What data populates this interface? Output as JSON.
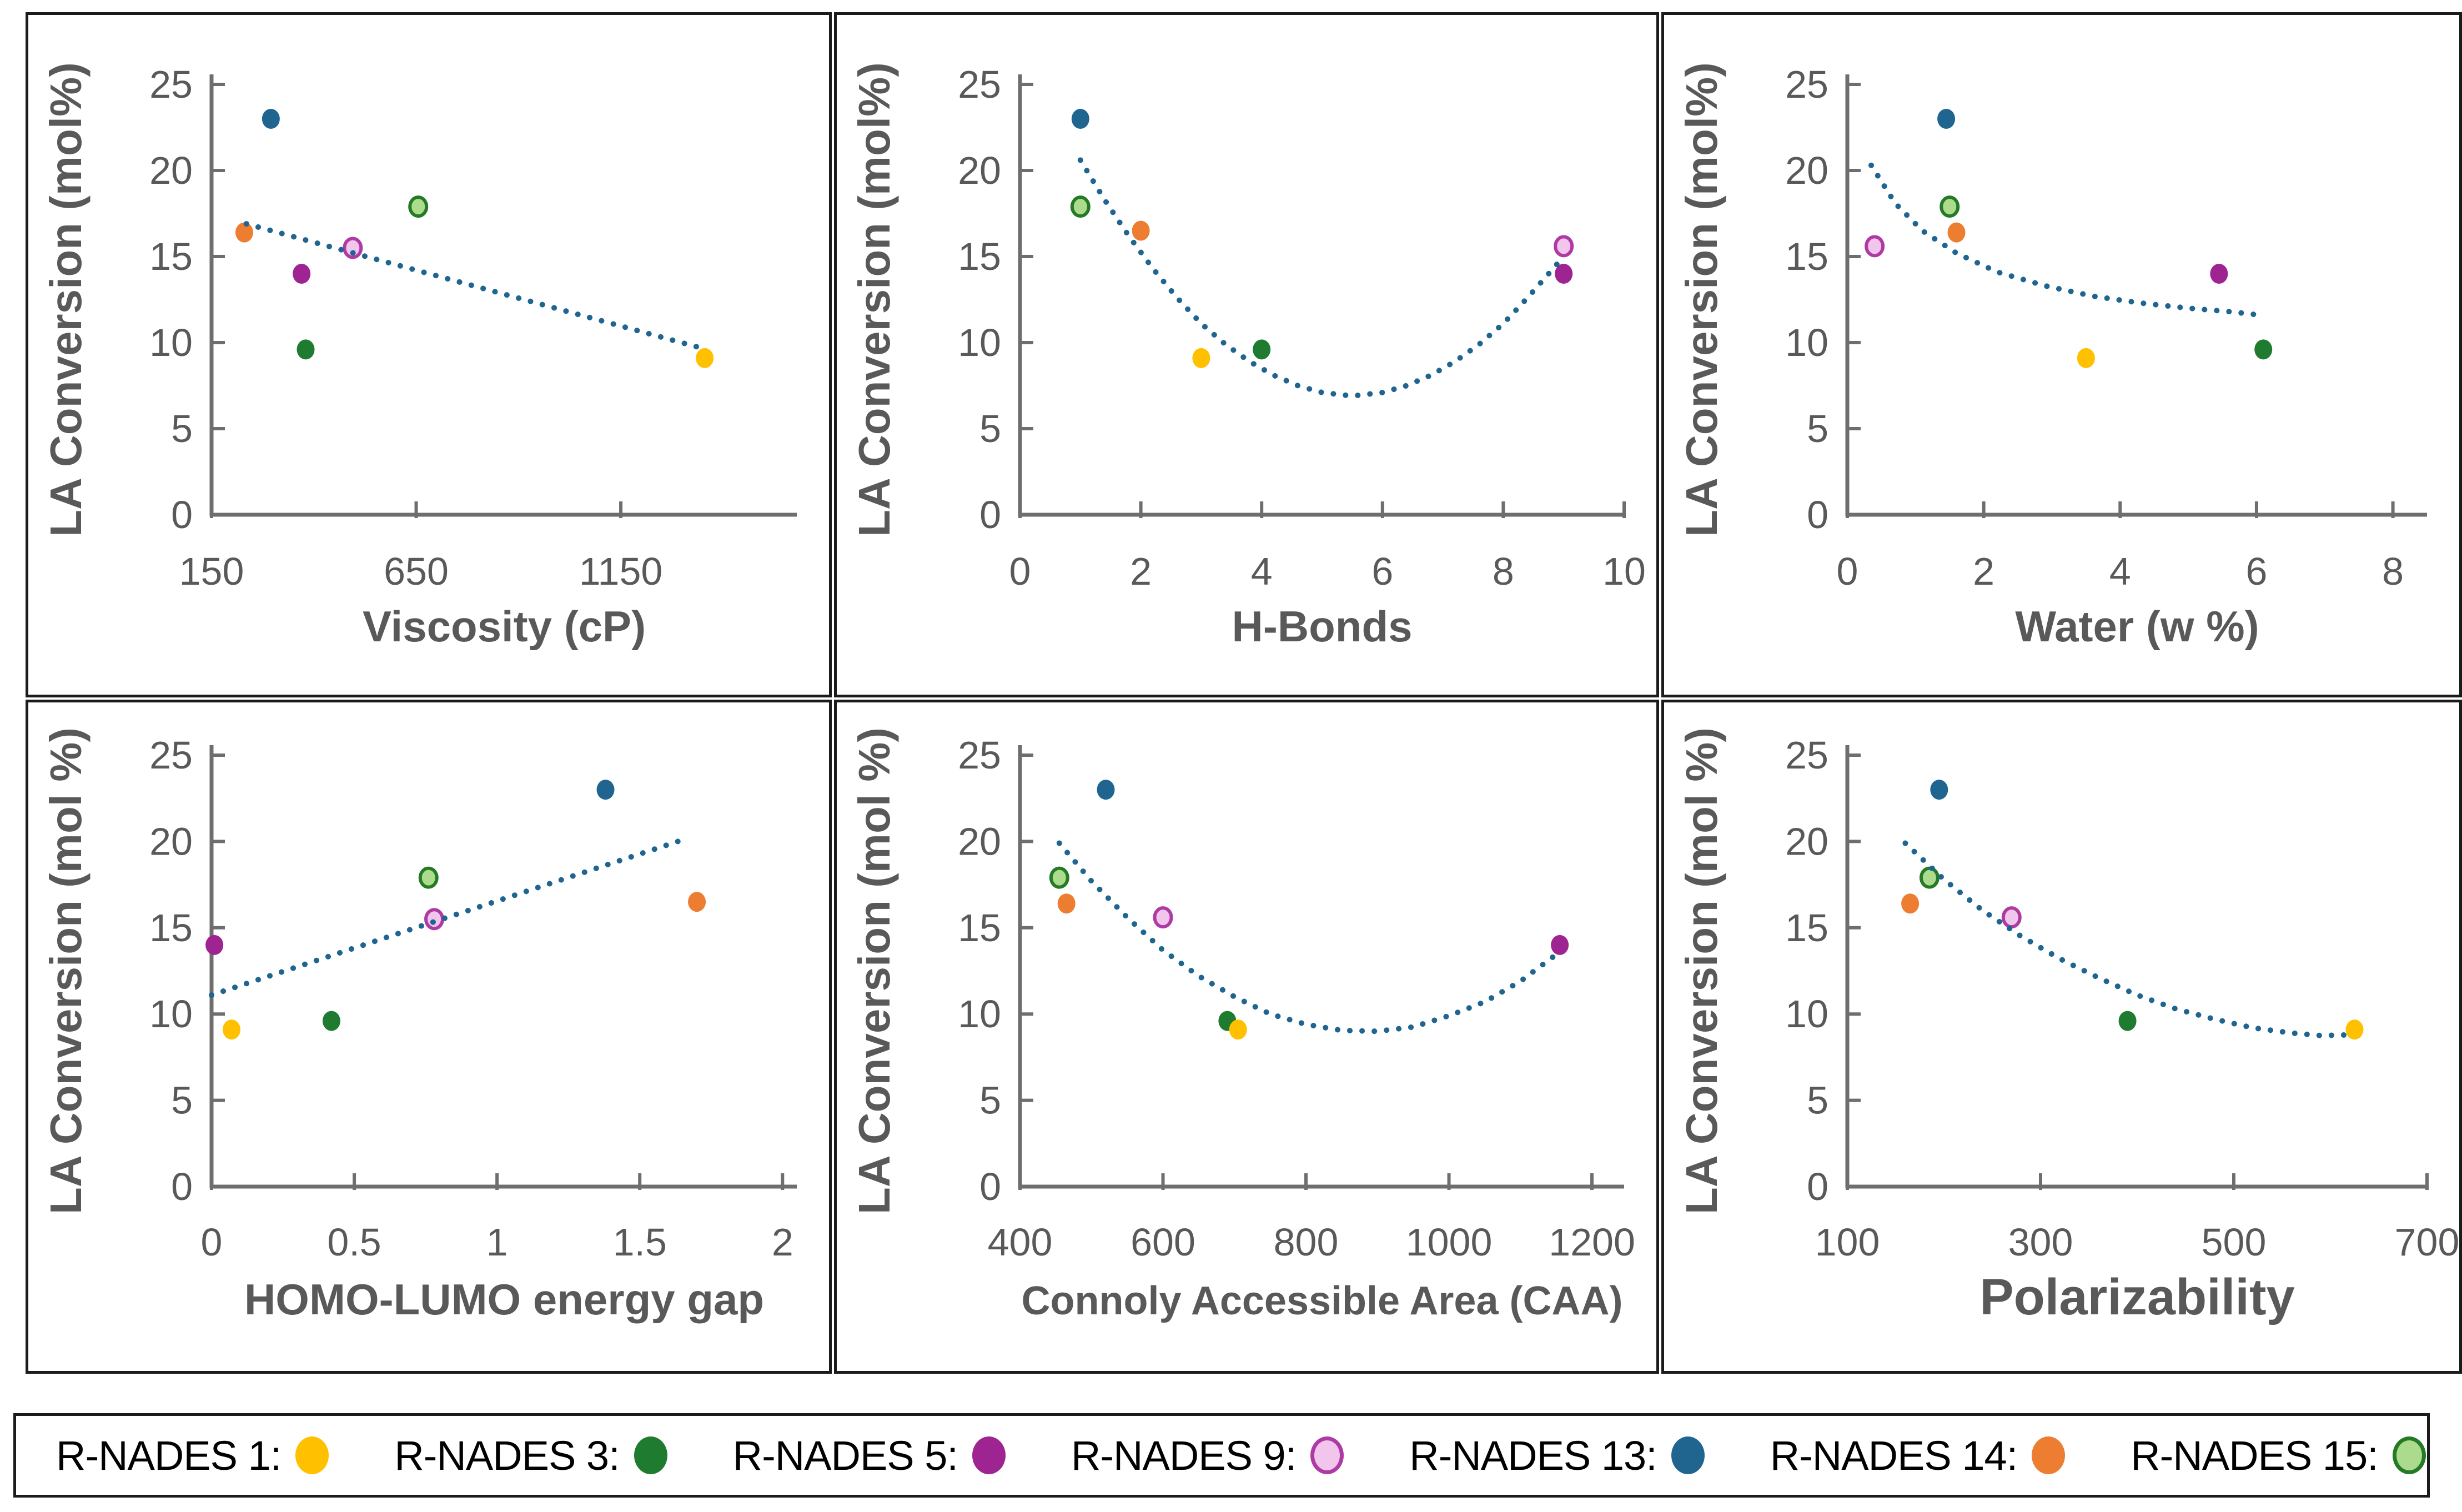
{
  "style": {
    "axis_color": "#6E6E6E",
    "tick_text_color": "#595959",
    "title_text_color": "#595959",
    "trend_color": "#1F6590",
    "panel_border_color": "#1b1b1b",
    "legend_text_color": "#000000",
    "background": "#ffffff"
  },
  "palette": {
    "R-NADES 1": {
      "fill": "#FFC000"
    },
    "R-NADES 3": {
      "fill": "#1E7B2F"
    },
    "R-NADES 5": {
      "fill": "#9E2491"
    },
    "R-NADES 9": {
      "fill": "#F2C5EC",
      "stroke": "#AE3AA4"
    },
    "R-NADES 13": {
      "fill": "#1F6590"
    },
    "R-NADES 14": {
      "fill": "#ED7D31"
    },
    "R-NADES 15": {
      "fill": "#ACDB8E",
      "stroke": "#257A25"
    }
  },
  "legend": {
    "items": [
      {
        "label": "R-NADES 1:",
        "key": "R-NADES 1"
      },
      {
        "label": "R-NADES 3:",
        "key": "R-NADES 3"
      },
      {
        "label": "R-NADES 5:",
        "key": "R-NADES 5"
      },
      {
        "label": "R-NADES 9:",
        "key": "R-NADES 9"
      },
      {
        "label": "R-NADES 13:",
        "key": "R-NADES 13"
      },
      {
        "label": "R-NADES 14:",
        "key": "R-NADES 14"
      },
      {
        "label": "R-NADES 15:",
        "key": "R-NADES 15"
      }
    ]
  },
  "chart_data": [
    {
      "id": "viscosity",
      "type": "scatter",
      "xlabel": "Viscosity (cP)",
      "ylabel": "LA Conversion (mol%)",
      "xlim": [
        150,
        1580
      ],
      "xticks": [
        150,
        650,
        1150
      ],
      "ylim": [
        0,
        25
      ],
      "yticks": [
        0,
        5,
        10,
        15,
        20,
        25
      ],
      "title_size": 78,
      "points": [
        {
          "sample": "R-NADES 13",
          "x": 295,
          "y": 23.0
        },
        {
          "sample": "R-NADES 14",
          "x": 230,
          "y": 16.4
        },
        {
          "sample": "R-NADES 15",
          "x": 655,
          "y": 17.9
        },
        {
          "sample": "R-NADES 9",
          "x": 495,
          "y": 15.5
        },
        {
          "sample": "R-NADES 5",
          "x": 370,
          "y": 14.0
        },
        {
          "sample": "R-NADES 3",
          "x": 380,
          "y": 9.6
        },
        {
          "sample": "R-NADES 1",
          "x": 1355,
          "y": 9.1
        }
      ],
      "trend": {
        "type": "linear",
        "points": [
          [
            235,
            16.9
          ],
          [
            1360,
            9.6
          ]
        ]
      }
    },
    {
      "id": "hbonds",
      "type": "scatter",
      "xlabel": "H-Bonds",
      "ylabel": "LA Conversion (mol%)",
      "xlim": [
        0,
        10
      ],
      "xticks": [
        0,
        2,
        4,
        6,
        8,
        10
      ],
      "ylim": [
        0,
        25
      ],
      "yticks": [
        0,
        5,
        10,
        15,
        20,
        25
      ],
      "title_size": 78,
      "points": [
        {
          "sample": "R-NADES 13",
          "x": 1,
          "y": 23.0
        },
        {
          "sample": "R-NADES 15",
          "x": 1,
          "y": 17.9
        },
        {
          "sample": "R-NADES 14",
          "x": 2,
          "y": 16.5
        },
        {
          "sample": "R-NADES 1",
          "x": 3,
          "y": 9.1
        },
        {
          "sample": "R-NADES 3",
          "x": 4,
          "y": 9.6
        },
        {
          "sample": "R-NADES 5",
          "x": 9,
          "y": 14.0
        },
        {
          "sample": "R-NADES 9",
          "x": 9,
          "y": 15.6
        }
      ],
      "trend": {
        "type": "polynomial",
        "points": [
          [
            1.0,
            20.6
          ],
          [
            1.4,
            18.3
          ],
          [
            1.8,
            16.2
          ],
          [
            2.2,
            14.3
          ],
          [
            2.6,
            12.6
          ],
          [
            3.0,
            11.1
          ],
          [
            3.4,
            9.9
          ],
          [
            3.8,
            8.9
          ],
          [
            4.2,
            8.1
          ],
          [
            4.6,
            7.5
          ],
          [
            5.0,
            7.1
          ],
          [
            5.5,
            6.9
          ],
          [
            6.0,
            7.1
          ],
          [
            6.4,
            7.5
          ],
          [
            6.8,
            8.1
          ],
          [
            7.2,
            8.9
          ],
          [
            7.6,
            9.9
          ],
          [
            8.0,
            11.1
          ],
          [
            8.4,
            12.6
          ],
          [
            8.7,
            13.8
          ],
          [
            9.0,
            15.0
          ]
        ]
      }
    },
    {
      "id": "water",
      "type": "scatter",
      "xlabel": "Water (w %)",
      "ylabel": "LA Conversion (mol%)",
      "xlim": [
        0,
        8.5
      ],
      "xticks": [
        0,
        2,
        4,
        6,
        8
      ],
      "ylim": [
        0,
        25
      ],
      "yticks": [
        0,
        5,
        10,
        15,
        20,
        25
      ],
      "title_size": 78,
      "points": [
        {
          "sample": "R-NADES 9",
          "x": 0.4,
          "y": 15.6
        },
        {
          "sample": "R-NADES 13",
          "x": 1.45,
          "y": 23.0
        },
        {
          "sample": "R-NADES 15",
          "x": 1.5,
          "y": 17.9
        },
        {
          "sample": "R-NADES 14",
          "x": 1.6,
          "y": 16.4
        },
        {
          "sample": "R-NADES 1",
          "x": 3.5,
          "y": 9.1
        },
        {
          "sample": "R-NADES 5",
          "x": 5.45,
          "y": 14.0
        },
        {
          "sample": "R-NADES 3",
          "x": 6.1,
          "y": 9.6
        }
      ],
      "trend": {
        "type": "logarithmic",
        "points": [
          [
            0.35,
            20.3
          ],
          [
            0.7,
            18.1
          ],
          [
            1.1,
            16.5
          ],
          [
            1.6,
            15.2
          ],
          [
            2.2,
            14.1
          ],
          [
            2.9,
            13.3
          ],
          [
            3.6,
            12.7
          ],
          [
            4.3,
            12.3
          ],
          [
            5.0,
            12.0
          ],
          [
            5.6,
            11.8
          ],
          [
            6.05,
            11.6
          ]
        ]
      }
    },
    {
      "id": "homo-lumo",
      "type": "scatter",
      "xlabel": "HOMO-LUMO energy gap",
      "ylabel": "LA Conversion (mol %)",
      "xlim": [
        0,
        2.05
      ],
      "xticks": [
        0,
        0.5,
        1,
        1.5,
        2
      ],
      "ylim": [
        0,
        25
      ],
      "yticks": [
        0,
        5,
        10,
        15,
        20,
        25
      ],
      "title_size": 78,
      "points": [
        {
          "sample": "R-NADES 5",
          "x": 0.01,
          "y": 14.0
        },
        {
          "sample": "R-NADES 1",
          "x": 0.07,
          "y": 9.1
        },
        {
          "sample": "R-NADES 3",
          "x": 0.42,
          "y": 9.6
        },
        {
          "sample": "R-NADES 15",
          "x": 0.76,
          "y": 17.9
        },
        {
          "sample": "R-NADES 9",
          "x": 0.78,
          "y": 15.5
        },
        {
          "sample": "R-NADES 13",
          "x": 1.38,
          "y": 23.0
        },
        {
          "sample": "R-NADES 14",
          "x": 1.7,
          "y": 16.5
        }
      ],
      "trend": {
        "type": "linear",
        "points": [
          [
            0,
            11.1
          ],
          [
            1.67,
            20.2
          ]
        ]
      }
    },
    {
      "id": "caa",
      "type": "scatter",
      "xlabel": "Connoly Accessible Area (CAA)",
      "ylabel": "LA Conversion (mol %)",
      "xlim": [
        400,
        1245
      ],
      "xticks": [
        400,
        600,
        800,
        1000,
        1200
      ],
      "ylim": [
        0,
        25
      ],
      "yticks": [
        0,
        5,
        10,
        15,
        20,
        25
      ],
      "title_size": 72,
      "points": [
        {
          "sample": "R-NADES 15",
          "x": 455,
          "y": 17.9
        },
        {
          "sample": "R-NADES 14",
          "x": 465,
          "y": 16.4
        },
        {
          "sample": "R-NADES 13",
          "x": 520,
          "y": 23.0
        },
        {
          "sample": "R-NADES 9",
          "x": 600,
          "y": 15.6
        },
        {
          "sample": "R-NADES 3",
          "x": 690,
          "y": 9.6
        },
        {
          "sample": "R-NADES 1",
          "x": 705,
          "y": 9.1
        },
        {
          "sample": "R-NADES 5",
          "x": 1155,
          "y": 14.0
        }
      ],
      "trend": {
        "type": "polynomial",
        "points": [
          [
            455,
            19.9
          ],
          [
            500,
            17.7
          ],
          [
            550,
            15.6
          ],
          [
            600,
            13.7
          ],
          [
            650,
            12.2
          ],
          [
            700,
            11.0
          ],
          [
            750,
            10.0
          ],
          [
            800,
            9.4
          ],
          [
            850,
            9.05
          ],
          [
            900,
            9.0
          ],
          [
            950,
            9.25
          ],
          [
            1000,
            9.9
          ],
          [
            1050,
            10.7
          ],
          [
            1100,
            11.9
          ],
          [
            1155,
            13.6
          ]
        ]
      }
    },
    {
      "id": "polarizability",
      "type": "scatter",
      "xlabel": "Polarizability",
      "ylabel": "LA Conversion (mol %)",
      "xlim": [
        100,
        700
      ],
      "xticks": [
        100,
        300,
        500,
        700
      ],
      "ylim": [
        0,
        25
      ],
      "yticks": [
        0,
        5,
        10,
        15,
        20,
        25
      ],
      "title_size": 92,
      "points": [
        {
          "sample": "R-NADES 14",
          "x": 165,
          "y": 16.4
        },
        {
          "sample": "R-NADES 13",
          "x": 195,
          "y": 23.0
        },
        {
          "sample": "R-NADES 15",
          "x": 185,
          "y": 17.9
        },
        {
          "sample": "R-NADES 9",
          "x": 270,
          "y": 15.6
        },
        {
          "sample": "R-NADES 3",
          "x": 390,
          "y": 9.6
        },
        {
          "sample": "R-NADES 1",
          "x": 625,
          "y": 9.1
        }
      ],
      "trend": {
        "type": "power",
        "points": [
          [
            160,
            19.9
          ],
          [
            200,
            17.8
          ],
          [
            240,
            16.0
          ],
          [
            280,
            14.5
          ],
          [
            320,
            13.2
          ],
          [
            360,
            12.1
          ],
          [
            400,
            11.1
          ],
          [
            440,
            10.3
          ],
          [
            480,
            9.7
          ],
          [
            520,
            9.2
          ],
          [
            560,
            8.9
          ],
          [
            590,
            8.75
          ],
          [
            625,
            8.8
          ]
        ]
      }
    }
  ]
}
